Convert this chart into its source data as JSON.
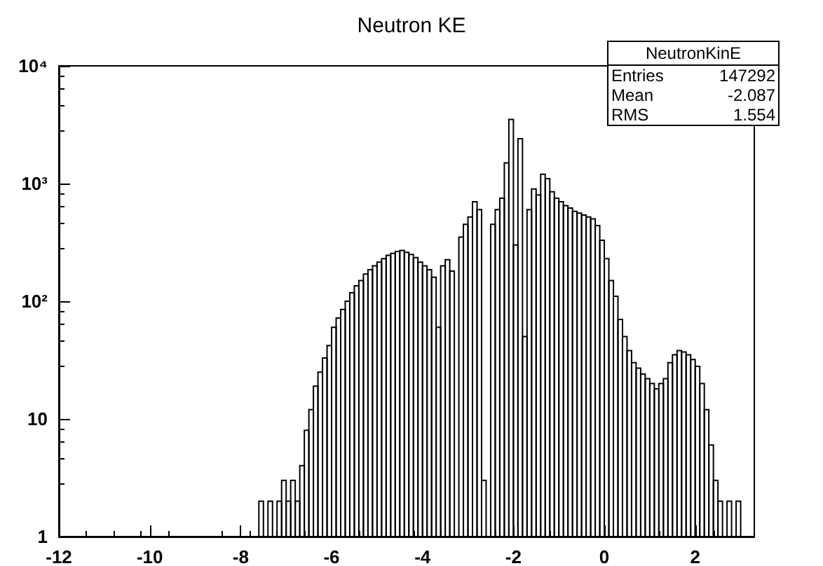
{
  "chart_data": {
    "type": "histogram",
    "title": "Neutron KE",
    "annotations": [
      "NeutronKinE",
      "Entries 147292",
      "Mean -2.087",
      "RMS 1.554"
    ],
    "bins": [
      -7.6,
      -7.5,
      -7.4,
      -7.3,
      -7.2,
      -7.1,
      -7.0,
      -6.9,
      -6.8,
      -6.7,
      -6.6,
      -6.5,
      -6.4,
      -6.3,
      -6.2,
      -6.1,
      -6.0,
      -5.9,
      -5.8,
      -5.7,
      -5.6,
      -5.5,
      -5.4,
      -5.3,
      -5.2,
      -5.1,
      -5.0,
      -4.9,
      -4.8,
      -4.7,
      -4.6,
      -4.5,
      -4.4,
      -4.3,
      -4.2,
      -4.1,
      -4.0,
      -3.9,
      -3.8,
      -3.7,
      -3.6,
      -3.5,
      -3.4,
      -3.3,
      -3.2,
      -3.1,
      -3.0,
      -2.9,
      -2.8,
      -2.7,
      -2.6,
      -2.5,
      -2.4,
      -2.3,
      -2.2,
      -2.1,
      -2.0,
      -1.9,
      -1.8,
      -1.7,
      -1.6,
      -1.5,
      -1.4,
      -1.3,
      -1.2,
      -1.1,
      -1.0,
      -0.9,
      -0.8,
      -0.7,
      -0.6,
      -0.5,
      -0.4,
      -0.3,
      -0.2,
      -0.1,
      0.0,
      0.1,
      0.2,
      0.3,
      0.4,
      0.5,
      0.6,
      0.7,
      0.8,
      0.9,
      1.0,
      1.1,
      1.2,
      1.3,
      1.4,
      1.5,
      1.6,
      1.7,
      1.8,
      1.9,
      2.0,
      2.1,
      2.2,
      2.3,
      2.4,
      2.5,
      2.6,
      2.7,
      2.8,
      2.9,
      3.0
    ],
    "values": [
      2,
      1,
      2,
      1,
      2,
      3,
      2,
      3,
      2,
      4,
      8,
      12,
      19,
      25,
      33,
      42,
      60,
      72,
      85,
      100,
      118,
      135,
      150,
      170,
      185,
      200,
      215,
      230,
      245,
      255,
      265,
      270,
      260,
      250,
      235,
      215,
      200,
      185,
      160,
      60,
      200,
      225,
      180,
      1,
      350,
      450,
      520,
      700,
      600,
      3,
      1,
      450,
      600,
      750,
      1500,
      3500,
      300,
      2400,
      50,
      600,
      900,
      800,
      1200,
      1100,
      850,
      750,
      700,
      650,
      620,
      580,
      560,
      540,
      520,
      500,
      440,
      330,
      230,
      150,
      110,
      70,
      50,
      38,
      30,
      27,
      24,
      22,
      20,
      18,
      20,
      22,
      30,
      35,
      38,
      37,
      35,
      32,
      28,
      20,
      12,
      6,
      3,
      2,
      1,
      2,
      1,
      2
    ],
    "color": "#000000",
    "log": "y",
    "xlim": [
      -12,
      3.3
    ],
    "xticks": [
      -12,
      -10,
      -8,
      -6,
      -4,
      -2,
      0,
      2
    ],
    "ylim": [
      1,
      10000
    ],
    "yticks": [
      1,
      10,
      {
        "value": 100,
        "label": "10²"
      },
      {
        "value": 1000,
        "label": "10³"
      },
      {
        "value": 10000,
        "label": "10⁴"
      }
    ],
    "grid": false
  }
}
